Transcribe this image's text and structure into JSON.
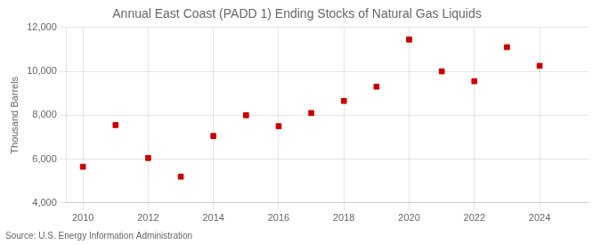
{
  "chart_data": {
    "type": "scatter",
    "title": "Annual East Coast (PADD 1) Ending Stocks of Natural Gas Liquids",
    "ylabel": "Thousand Barrels",
    "annotation": "Source: U.S. Energy Information Administration",
    "x": [
      2010,
      2011,
      2012,
      2013,
      2014,
      2015,
      2016,
      2017,
      2018,
      2019,
      2020,
      2021,
      2022,
      2023,
      2024
    ],
    "values": [
      5650,
      7550,
      6050,
      5200,
      7050,
      8000,
      7500,
      8100,
      8650,
      9300,
      11450,
      10000,
      9550,
      11100,
      10250
    ],
    "color": "#cc0000",
    "marker": "square",
    "xlim": [
      2009.5,
      2025.5
    ],
    "xticks": [
      2010,
      2012,
      2014,
      2016,
      2018,
      2020,
      2022,
      2024
    ],
    "ylim": [
      4000,
      12000
    ],
    "yticks": [
      {
        "value": 4000,
        "label": "4,000"
      },
      {
        "value": 6000,
        "label": "6,000"
      },
      {
        "value": 8000,
        "label": "8,000"
      },
      {
        "value": 10000,
        "label": "10,000"
      },
      {
        "value": 12000,
        "label": "12,000"
      }
    ],
    "grid": true
  }
}
